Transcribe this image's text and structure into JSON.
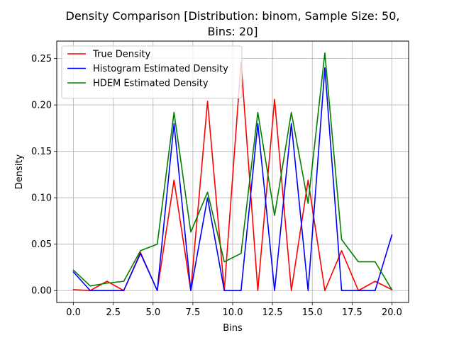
{
  "chart_data": {
    "type": "line",
    "title_lines": [
      "Density Comparison [Distribution: binom, Sample Size: 50,",
      "Bins: 20]"
    ],
    "xlabel": "Bins",
    "ylabel": "Density",
    "xlim": [
      -1.05,
      21.05
    ],
    "ylim": [
      -0.0128,
      0.2688
    ],
    "xticks": [
      0.0,
      2.5,
      5.0,
      7.5,
      10.0,
      12.5,
      15.0,
      17.5,
      20.0
    ],
    "xtick_labels": [
      "0.0",
      "2.5",
      "5.0",
      "7.5",
      "10.0",
      "12.5",
      "15.0",
      "17.5",
      "20.0"
    ],
    "yticks": [
      0.0,
      0.05,
      0.1,
      0.15,
      0.2,
      0.25
    ],
    "ytick_labels": [
      "0.00",
      "0.05",
      "0.10",
      "0.15",
      "0.20",
      "0.25"
    ],
    "grid": true,
    "legend_position": "top-left",
    "x": [
      0.0,
      1.0526,
      2.1053,
      3.1579,
      4.2105,
      5.2632,
      6.3158,
      7.3684,
      8.4211,
      9.4737,
      10.5263,
      11.5789,
      12.6316,
      13.6842,
      14.7368,
      15.7895,
      16.8421,
      17.8947,
      18.9474,
      20.0
    ],
    "series": [
      {
        "name": "True Density",
        "color": "#ff0000",
        "values": [
          0.001,
          0.0,
          0.01,
          0.0,
          0.041,
          0.0,
          0.119,
          0.0,
          0.204,
          0.0,
          0.246,
          0.0,
          0.206,
          0.0,
          0.119,
          0.0,
          0.043,
          0.0,
          0.01,
          0.001
        ]
      },
      {
        "name": "Histogram Estimated Density",
        "color": "#0000ff",
        "values": [
          0.02,
          0.0,
          0.0,
          0.0,
          0.04,
          0.0,
          0.18,
          0.0,
          0.1,
          0.0,
          0.0,
          0.18,
          0.0,
          0.18,
          0.0,
          0.24,
          0.0,
          0.0,
          0.0,
          0.06
        ]
      },
      {
        "name": "HDEM Estimated Density",
        "color": "#008000",
        "values": [
          0.022,
          0.005,
          0.008,
          0.01,
          0.043,
          0.05,
          0.192,
          0.063,
          0.106,
          0.031,
          0.04,
          0.192,
          0.081,
          0.192,
          0.094,
          0.256,
          0.055,
          0.031,
          0.031,
          0.001
        ]
      }
    ]
  }
}
